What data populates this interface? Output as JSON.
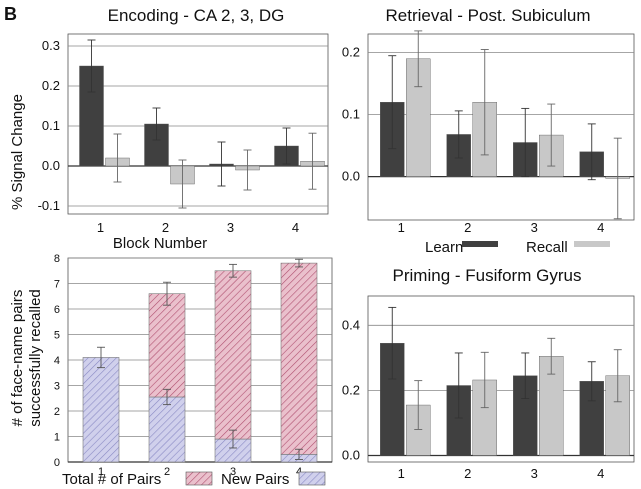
{
  "panel_letter": "B",
  "chart_data": [
    {
      "id": "encoding",
      "type": "bar",
      "title": "Encoding - CA 2, 3, DG",
      "xlabel": "Block Number",
      "ylabel": "% Signal Change",
      "categories": [
        "1",
        "2",
        "3",
        "4"
      ],
      "yticks": [
        "-0.1",
        "0.0",
        "0.1",
        "0.2",
        "0.3"
      ],
      "ylim": [
        -0.12,
        0.33
      ],
      "grid": true,
      "series": [
        {
          "name": "Learn",
          "color": "#404040",
          "values": [
            0.25,
            0.105,
            0.005,
            0.05
          ],
          "err": [
            0.065,
            0.04,
            0.055,
            0.045
          ]
        },
        {
          "name": "Recall",
          "color": "#c8c8c8",
          "values": [
            0.02,
            -0.045,
            -0.01,
            0.012
          ],
          "err": [
            0.06,
            0.06,
            0.05,
            0.07
          ]
        }
      ]
    },
    {
      "id": "retrieval",
      "type": "bar",
      "title": "Retrieval - Post. Subiculum",
      "xlabel": "",
      "ylabel": "",
      "categories": [
        "1",
        "2",
        "3",
        "4"
      ],
      "yticks": [
        "0.0",
        "0.1",
        "0.2"
      ],
      "ylim": [
        -0.07,
        0.23
      ],
      "grid": true,
      "series": [
        {
          "name": "Learn",
          "color": "#404040",
          "values": [
            0.12,
            0.068,
            0.055,
            0.04
          ],
          "err": [
            0.075,
            0.038,
            0.055,
            0.045
          ]
        },
        {
          "name": "Recall",
          "color": "#c8c8c8",
          "values": [
            0.19,
            0.12,
            0.067,
            -0.003
          ],
          "err": [
            0.045,
            0.085,
            0.05,
            0.065
          ]
        }
      ],
      "legend": {
        "position": "bottom",
        "labels": [
          "Learn",
          "Recall"
        ]
      }
    },
    {
      "id": "pairs",
      "type": "bar",
      "stacked": true,
      "title": "",
      "xlabel": "",
      "ylabel": "# of face-name pairs successfully recalled",
      "ylabel_lines": [
        "# of face-name pairs",
        "successfully recalled"
      ],
      "categories": [
        "1",
        "2",
        "3",
        "4"
      ],
      "yticks": [
        "0",
        "1",
        "2",
        "3",
        "4",
        "5",
        "6",
        "7",
        "8"
      ],
      "ylim": [
        0,
        8
      ],
      "grid": true,
      "series": [
        {
          "name": "New Pairs",
          "color": "#c8c8e8",
          "hatch": "#8888c0",
          "values": [
            4.1,
            2.55,
            0.9,
            0.3
          ],
          "err": [
            0.4,
            0.3,
            0.35,
            0.2
          ]
        },
        {
          "name": "Total # of Pairs",
          "color": "#eac0cc",
          "hatch": "#b05070",
          "values": [
            0,
            4.05,
            6.6,
            7.5
          ],
          "total": [
            4.1,
            6.6,
            7.5,
            7.8
          ],
          "err": [
            0,
            0.45,
            0.25,
            0.15
          ]
        }
      ],
      "legend": {
        "position": "bottom",
        "labels": [
          "Total # of Pairs",
          "New Pairs"
        ]
      }
    },
    {
      "id": "priming",
      "type": "bar",
      "title": "Priming - Fusiform Gyrus",
      "xlabel": "",
      "ylabel": "",
      "categories": [
        "1",
        "2",
        "3",
        "4"
      ],
      "yticks": [
        "0.0",
        "0.2",
        "0.4"
      ],
      "ylim": [
        -0.02,
        0.49
      ],
      "grid": true,
      "series": [
        {
          "name": "Learn",
          "color": "#404040",
          "values": [
            0.345,
            0.215,
            0.245,
            0.228
          ],
          "err": [
            0.11,
            0.1,
            0.07,
            0.06
          ]
        },
        {
          "name": "Recall",
          "color": "#c8c8c8",
          "values": [
            0.155,
            0.232,
            0.305,
            0.245
          ],
          "err": [
            0.075,
            0.085,
            0.055,
            0.08
          ]
        }
      ]
    }
  ]
}
